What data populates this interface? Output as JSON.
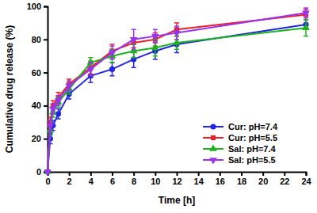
{
  "chart_data": {
    "type": "line",
    "x_label": "Time [h]",
    "y_label": "Cumulative drug release (%)",
    "x": [
      0,
      0.25,
      0.5,
      1,
      2,
      4,
      6,
      8,
      10,
      12,
      24
    ],
    "xlim": [
      0,
      24
    ],
    "xticks": [
      0,
      2,
      4,
      6,
      8,
      10,
      12,
      14,
      16,
      18,
      20,
      22,
      24
    ],
    "ylim": [
      0,
      100
    ],
    "yticks": [
      0,
      20,
      40,
      60,
      80,
      100
    ],
    "legend": "lower right",
    "series": [
      {
        "name": "Cur: pH=7.4",
        "color": "#2323e6",
        "marker": "circle",
        "values": [
          0,
          20,
          28,
          35,
          47,
          58,
          62,
          68,
          73,
          77,
          89
        ],
        "errors": [
          0,
          3,
          3,
          3,
          3,
          4,
          4,
          5,
          5,
          5,
          3
        ]
      },
      {
        "name": "Cur: pH=5.5",
        "color": "#e8202a",
        "marker": "square",
        "values": [
          0,
          30,
          40,
          45,
          53,
          63,
          73,
          78,
          80,
          86,
          95
        ],
        "errors": [
          0,
          3,
          3,
          3,
          3,
          4,
          4,
          3,
          4,
          4,
          3
        ]
      },
      {
        "name": "Sal: pH=7.4",
        "color": "#1db31d",
        "marker": "triangle-up",
        "values": [
          0,
          25,
          36,
          42,
          50,
          66,
          70,
          73,
          75,
          78,
          87
        ],
        "errors": [
          0,
          3,
          3,
          3,
          3,
          3,
          4,
          4,
          5,
          4,
          5
        ]
      },
      {
        "name": "Sal: pH=5.5",
        "color": "#9933ee",
        "marker": "triangle-down",
        "values": [
          0,
          28,
          38,
          43,
          52,
          62,
          72,
          80,
          82,
          84,
          96
        ],
        "errors": [
          0,
          3,
          3,
          3,
          3,
          4,
          4,
          6,
          4,
          4,
          3
        ]
      }
    ]
  }
}
